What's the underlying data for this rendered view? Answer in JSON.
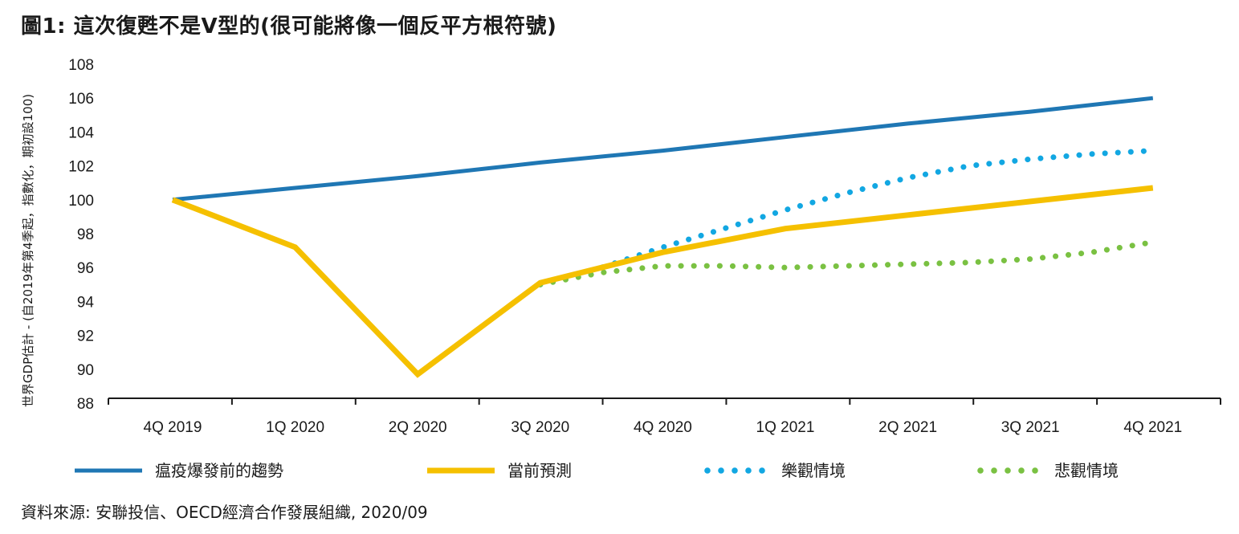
{
  "title": "圖1: 這次復甦不是V型的(很可能將像一個反平方根符號)",
  "source": "資料來源: 安聯投信、OECD經濟合作發展組織, 2020/09",
  "chart_data": {
    "type": "line",
    "ylabel": "世界GDP估計 - (自2019年第4季起，指數化，期初設100)",
    "xlabel": "",
    "categories": [
      "4Q 2019",
      "1Q 2020",
      "2Q 2020",
      "3Q 2020",
      "4Q 2020",
      "1Q 2021",
      "2Q 2021",
      "3Q 2021",
      "4Q 2021"
    ],
    "ylim": [
      88,
      108
    ],
    "yticks": [
      88,
      90,
      92,
      94,
      96,
      98,
      100,
      102,
      104,
      106,
      108
    ],
    "grid": false,
    "legend_position": "bottom",
    "series": [
      {
        "name": "瘟疫爆發前的趨勢",
        "style": "solid",
        "color": "#1f77b4",
        "x": [
          0,
          1,
          2,
          3,
          4,
          5,
          6,
          7,
          8
        ],
        "values": [
          100,
          100.7,
          101.4,
          102.2,
          102.9,
          103.7,
          104.5,
          105.2,
          106.0
        ]
      },
      {
        "name": "當前預測",
        "style": "solid",
        "color": "#f5c000",
        "x": [
          0,
          1,
          2,
          3,
          4,
          5,
          6,
          7,
          8
        ],
        "values": [
          100,
          97.2,
          89.7,
          95.1,
          96.9,
          98.3,
          99.1,
          99.9,
          100.7
        ]
      },
      {
        "name": "樂觀情境",
        "style": "dotted",
        "color": "#12a7e2",
        "x": [
          3,
          3.5,
          4,
          4.5,
          5,
          5.5,
          6,
          6.5,
          7,
          7.5,
          8
        ],
        "values": [
          95.0,
          96.0,
          97.2,
          98.3,
          99.4,
          100.4,
          101.3,
          102.0,
          102.4,
          102.7,
          102.9
        ]
      },
      {
        "name": "悲觀情境",
        "style": "dotted",
        "color": "#7ac142",
        "x": [
          3,
          3.5,
          4,
          4.5,
          5,
          5.5,
          6,
          6.5,
          7,
          7.5,
          8
        ],
        "values": [
          95.0,
          95.7,
          96.1,
          96.1,
          96.0,
          96.1,
          96.2,
          96.3,
          96.5,
          96.9,
          97.5
        ]
      }
    ]
  }
}
